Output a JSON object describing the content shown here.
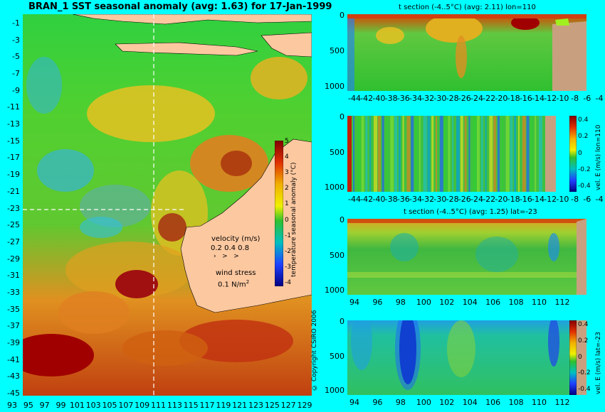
{
  "map": {
    "title": "BRAN_1 SST seasonal anomaly (avg: 1.63) for 17-Jan-1999",
    "y_ticks": [
      "-1",
      "-3",
      "-5",
      "-7",
      "-9",
      "-11",
      "-13",
      "-15",
      "-17",
      "-19",
      "-21",
      "-23",
      "-25",
      "-27",
      "-29",
      "-31",
      "-33",
      "-35",
      "-37",
      "-39",
      "-41",
      "-43",
      "-45"
    ],
    "x_ticks": [
      "93",
      "95",
      "97",
      "99",
      "101",
      "103",
      "105",
      "107",
      "109",
      "111",
      "113",
      "115",
      "117",
      "119",
      "121",
      "123",
      "125",
      "127",
      "129"
    ],
    "colorbar": {
      "label": "temperature seasonal anomaly (°C)",
      "ticks": [
        "5",
        "4",
        "3",
        "2",
        "1",
        "0",
        "-1",
        "-2",
        "-3",
        "-4"
      ]
    },
    "velocity_legend": {
      "title": "velocity (m/s)",
      "values": "0.2 0.4 0.8",
      "wind_title": "wind stress",
      "wind_value": "0.1 N/m",
      "wind_sup": "2"
    },
    "copyright": "© Copyright CSIRO 2006"
  },
  "panels": [
    {
      "title": "t section (-4..5°C) (avg: 2.11) lon=110",
      "y_ticks": [
        "0",
        "500",
        "1000"
      ],
      "x_ticks": [
        "-44",
        "-42",
        "-40",
        "-38",
        "-36",
        "-34",
        "-32",
        "-30",
        "-28",
        "-26",
        "-24",
        "-22",
        "-20",
        "-18",
        "-16",
        "-14",
        "-12",
        "-10",
        "-8",
        "-6",
        "-4"
      ]
    },
    {
      "title": "",
      "y_ticks": [
        "0",
        "500",
        "1000"
      ],
      "x_ticks": [
        "-44",
        "-42",
        "-40",
        "-38",
        "-36",
        "-34",
        "-32",
        "-30",
        "-28",
        "-26",
        "-24",
        "-22",
        "-20",
        "-18",
        "-16",
        "-14",
        "-12",
        "-10",
        "-8",
        "-6",
        "-4"
      ],
      "colorbar_label": "vel. E (m/s) lon=110",
      "colorbar_ticks": [
        "0.4",
        "0.2",
        "0",
        "-0.2",
        "-0.4"
      ]
    },
    {
      "title": "t section (-4..5°C) (avg: 1.25) lat=-23",
      "y_ticks": [
        "0",
        "500",
        "1000"
      ],
      "x_ticks": [
        "94",
        "96",
        "98",
        "100",
        "102",
        "104",
        "106",
        "108",
        "110",
        "112"
      ]
    },
    {
      "title": "",
      "y_ticks": [
        "0",
        "500",
        "1000"
      ],
      "x_ticks": [
        "94",
        "96",
        "98",
        "100",
        "102",
        "104",
        "106",
        "108",
        "110",
        "112"
      ],
      "colorbar_label": "vel. E (m/s) lat=-23",
      "colorbar_ticks": [
        "0.4",
        "0.2",
        "0",
        "-0.2",
        "-0.4"
      ]
    }
  ],
  "colors": {
    "background": "#00ffff",
    "land": "#fcc8a0",
    "anomaly_high": "#a00000",
    "anomaly_mid": "#20c020",
    "anomaly_low": "#2060ff"
  }
}
